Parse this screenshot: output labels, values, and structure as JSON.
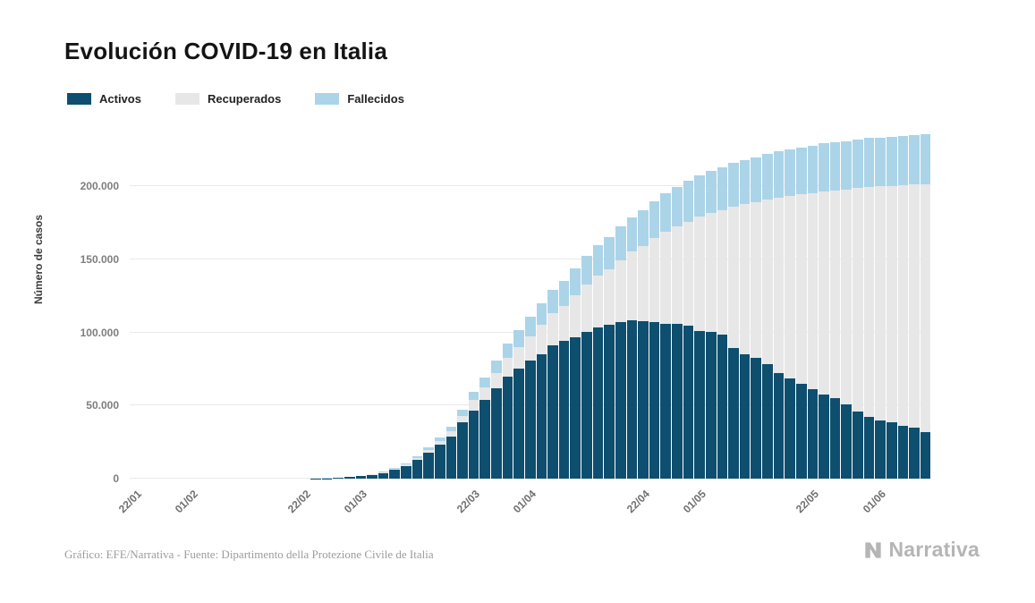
{
  "title": "Evolución COVID-19 en Italia",
  "legend": [
    {
      "label": "Activos",
      "color": "#0e4e6e"
    },
    {
      "label": "Recuperados",
      "color": "#e7e7e7"
    },
    {
      "label": "Fallecidos",
      "color": "#abd4e8"
    }
  ],
  "footer": {
    "source_text": "Gráfico: EFE/Narrativa - Fuente: Dipartimento della Protezione Civile de Italia",
    "brand": "Narrativa"
  },
  "chart_data": {
    "type": "bar",
    "stacked": true,
    "title": "Evolución COVID-19 en Italia",
    "xlabel": "",
    "ylabel": "Número de casos",
    "ylim": [
      0,
      240000
    ],
    "grid": true,
    "legend_position": "top-left",
    "y_ticks": [
      0,
      50000,
      100000,
      150000,
      200000
    ],
    "y_tick_labels": [
      "0",
      "50.000",
      "100.000",
      "150.000",
      "200.000"
    ],
    "x": [
      "22/01",
      "24/01",
      "26/01",
      "28/01",
      "30/01",
      "01/02",
      "03/02",
      "05/02",
      "07/02",
      "09/02",
      "11/02",
      "13/02",
      "15/02",
      "17/02",
      "19/02",
      "21/02",
      "23/02",
      "25/02",
      "27/02",
      "29/02",
      "02/03",
      "04/03",
      "06/03",
      "08/03",
      "10/03",
      "12/03",
      "14/03",
      "16/03",
      "18/03",
      "20/03",
      "22/03",
      "24/03",
      "26/03",
      "28/03",
      "30/03",
      "01/04",
      "03/04",
      "05/04",
      "07/04",
      "09/04",
      "11/04",
      "13/04",
      "15/04",
      "17/04",
      "19/04",
      "21/04",
      "23/04",
      "25/04",
      "27/04",
      "29/04",
      "01/05",
      "03/05",
      "05/05",
      "07/05",
      "09/05",
      "11/05",
      "13/05",
      "15/05",
      "17/05",
      "19/05",
      "21/05",
      "23/05",
      "25/05",
      "27/05",
      "29/05",
      "31/05",
      "02/06",
      "04/06",
      "06/06",
      "08/06",
      "10/06"
    ],
    "x_ticks": [
      {
        "label": "22/01",
        "index": 0
      },
      {
        "label": "01/02",
        "index": 5
      },
      {
        "label": "22/02",
        "index": 15
      },
      {
        "label": "01/03",
        "index": 20
      },
      {
        "label": "22/03",
        "index": 30
      },
      {
        "label": "01/04",
        "index": 35
      },
      {
        "label": "22/04",
        "index": 45
      },
      {
        "label": "01/05",
        "index": 50
      },
      {
        "label": "22/05",
        "index": 60
      },
      {
        "label": "01/06",
        "index": 66
      }
    ],
    "series": [
      {
        "name": "Activos",
        "color": "#0e4e6e",
        "values": [
          0,
          0,
          0,
          0,
          2,
          3,
          3,
          3,
          3,
          3,
          3,
          3,
          3,
          3,
          3,
          19,
          150,
          311,
          588,
          1049,
          1835,
          2706,
          3916,
          6387,
          8514,
          12839,
          17750,
          23073,
          28710,
          38549,
          46638,
          54030,
          62013,
          70065,
          75528,
          80572,
          85388,
          91246,
          94067,
          96877,
          100269,
          103616,
          105418,
          106962,
          108257,
          107709,
          106848,
          105847,
          105813,
          104657,
          100943,
          100179,
          98467,
          89624,
          84842,
          82488,
          78457,
          72070,
          68351,
          65129,
          60960,
          57752,
          55300,
          50966,
          46175,
          42097,
          39893,
          38429,
          35877,
          34730,
          31710
        ]
      },
      {
        "name": "Recuperados",
        "color": "#e7e7e7",
        "values": [
          0,
          0,
          0,
          0,
          0,
          0,
          0,
          0,
          0,
          0,
          0,
          0,
          0,
          0,
          0,
          0,
          2,
          2,
          45,
          50,
          149,
          276,
          523,
          622,
          1004,
          1258,
          1966,
          2749,
          4025,
          4440,
          7024,
          8326,
          10361,
          12384,
          14620,
          16847,
          19758,
          21815,
          24392,
          28470,
          32534,
          35435,
          38092,
          42727,
          47055,
          51600,
          57576,
          63120,
          66624,
          71252,
          78249,
          81654,
          85231,
          96276,
          103031,
          106587,
          112541,
          120205,
          125176,
          129401,
          134560,
          138840,
          141981,
          147101,
          152844,
          157507,
          160092,
          161895,
          165078,
          166584,
          169939
        ]
      },
      {
        "name": "Fallecidos",
        "color": "#abd4e8",
        "values": [
          0,
          0,
          0,
          0,
          0,
          0,
          0,
          0,
          0,
          0,
          0,
          0,
          0,
          0,
          0,
          1,
          3,
          10,
          17,
          29,
          52,
          107,
          197,
          366,
          631,
          1016,
          1441,
          2158,
          2978,
          4032,
          5476,
          6820,
          8215,
          10023,
          11591,
          13155,
          14681,
          15887,
          17127,
          18279,
          19468,
          20465,
          21645,
          22745,
          23660,
          24648,
          25549,
          26384,
          26977,
          27682,
          28236,
          28884,
          29315,
          29958,
          30395,
          30739,
          31106,
          31610,
          31908,
          32169,
          32486,
          32735,
          32877,
          33072,
          33229,
          33415,
          33530,
          33689,
          33846,
          33964,
          34114
        ]
      }
    ]
  }
}
